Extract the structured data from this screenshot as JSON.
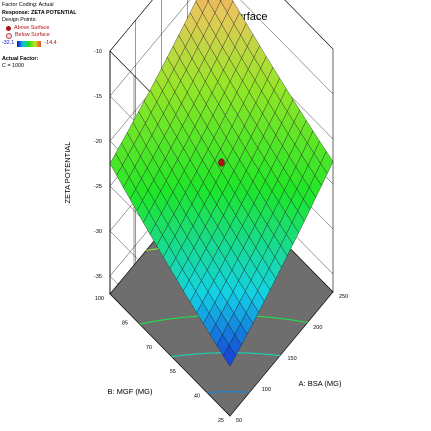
{
  "legend": {
    "factor_coding": "Factor Coding: Actual",
    "response": "Response: ZETA POTENTIAL",
    "design_points": "Design Points:",
    "above": "Above Surface",
    "below": "Below Surface",
    "scale_min": "-32.1",
    "scale_max": "-14.4",
    "actual_factor": "Actual Factor:",
    "factor_value": "C = 1000"
  },
  "colors": {
    "above_point": "#b01010",
    "floor": "#6e6e6e",
    "grid": "#000000"
  },
  "chart_data": {
    "type": "surface",
    "title": "3D Surface",
    "zlabel": "ZETA POTENTIAL",
    "xlabel": "A: BSA (MG)",
    "ylabel": "B: MGF (MG)",
    "x_range": [
      50,
      250
    ],
    "y_range": [
      25,
      100
    ],
    "z_range": [
      -37,
      -10
    ],
    "x_ticks": [
      50,
      100,
      150,
      200,
      250
    ],
    "y_ticks": [
      25,
      40,
      55,
      70,
      85,
      100
    ],
    "z_ticks": [
      -10,
      -15,
      -20,
      -25,
      -30,
      -35
    ],
    "corner_values": {
      "x50_y25": -31.5,
      "x250_y25": -22.5,
      "x50_y100": -22.5,
      "x250_y100": -14.4
    },
    "design_point": {
      "x": 150,
      "y": 62.5,
      "z": -22.5
    },
    "grid_on": true,
    "legend_position": "top-left"
  }
}
